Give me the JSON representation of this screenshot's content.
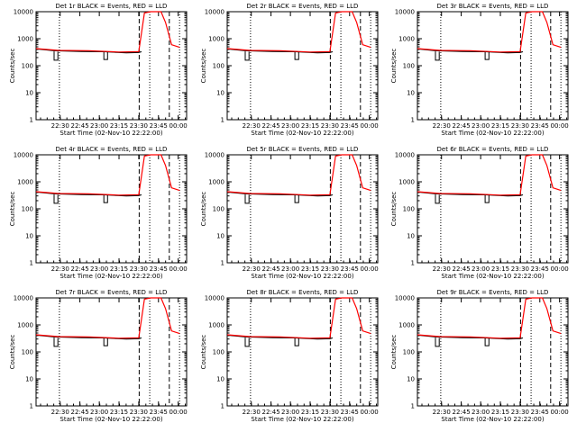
{
  "common": {
    "xlabel": "Start Time (02-Nov-10 22:22:00)",
    "ylabel": "Counts/sec",
    "x_ticks": [
      "22:30",
      "22:45",
      "23:00",
      "23:15",
      "23:30",
      "23:45",
      "00:00"
    ],
    "y_ticks": [
      "1",
      "10",
      "100",
      "1000",
      "10000"
    ],
    "colors": {
      "events": "#000000",
      "lld": "#ff0000",
      "axes": "#000000",
      "background": "#ffffff"
    }
  },
  "chart_data": [
    {
      "type": "line",
      "title": "Det 1r BLACK = Events, RED = LLD",
      "xlabel": "Start Time (02-Nov-10 22:22:00)",
      "ylabel": "Counts/sec",
      "y_scale": "log",
      "ylim": [
        1,
        10000
      ],
      "x_tick_labels": [
        "22:30",
        "22:45",
        "23:00",
        "23:15",
        "23:30",
        "23:45",
        "00:00"
      ],
      "y_tick_labels": [
        "1",
        "10",
        "100",
        "1000",
        "10000"
      ],
      "series": []
    },
    {
      "type": "line",
      "title": "Det 2r BLACK = Events, RED = LLD",
      "xlabel": "Start Time (02-Nov-10 22:22:00)",
      "ylabel": "Counts/sec",
      "y_scale": "log",
      "ylim": [
        1,
        10000
      ],
      "x_tick_labels": [
        "22:30",
        "22:45",
        "23:00",
        "23:15",
        "23:30",
        "23:45",
        "00:00"
      ],
      "y_tick_labels": [
        "1",
        "10",
        "100",
        "1000",
        "10000"
      ],
      "series": []
    },
    {
      "type": "line",
      "title": "Det 3r BLACK = Events, RED = LLD",
      "xlabel": "Start Time (02-Nov-10 22:22:00)",
      "ylabel": "Counts/sec",
      "y_scale": "log",
      "ylim": [
        1,
        10000
      ],
      "x_tick_labels": [
        "22:30",
        "22:45",
        "23:00",
        "23:15",
        "23:30",
        "23:45",
        "00:00"
      ],
      "y_tick_labels": [
        "1",
        "10",
        "100",
        "1000",
        "10000"
      ],
      "series": []
    },
    {
      "type": "line",
      "title": "Det 4r BLACK = Events, RED = LLD",
      "xlabel": "Start Time (02-Nov-10 22:22:00)",
      "ylabel": "Counts/sec",
      "y_scale": "log",
      "ylim": [
        1,
        10000
      ],
      "x_tick_labels": [
        "22:30",
        "22:45",
        "23:00",
        "23:15",
        "23:30",
        "23:45",
        "00:00"
      ],
      "y_tick_labels": [
        "1",
        "10",
        "100",
        "1000",
        "10000"
      ],
      "series": []
    },
    {
      "type": "line",
      "title": "Det 5r BLACK = Events, RED = LLD",
      "xlabel": "Start Time (02-Nov-10 22:22:00)",
      "ylabel": "Counts/sec",
      "y_scale": "log",
      "ylim": [
        1,
        10000
      ],
      "x_tick_labels": [
        "22:30",
        "22:45",
        "23:00",
        "23:15",
        "23:30",
        "23:45",
        "00:00"
      ],
      "y_tick_labels": [
        "1",
        "10",
        "100",
        "1000",
        "10000"
      ],
      "series": []
    },
    {
      "type": "line",
      "title": "Det 6r BLACK = Events, RED = LLD",
      "xlabel": "Start Time (02-Nov-10 22:22:00)",
      "ylabel": "Counts/sec",
      "y_scale": "log",
      "ylim": [
        1,
        10000
      ],
      "x_tick_labels": [
        "22:30",
        "22:45",
        "23:00",
        "23:15",
        "23:30",
        "23:45",
        "00:00"
      ],
      "y_tick_labels": [
        "1",
        "10",
        "100",
        "1000",
        "10000"
      ],
      "series": []
    },
    {
      "type": "line",
      "title": "Det 7r BLACK = Events, RED = LLD",
      "xlabel": "Start Time (02-Nov-10 22:22:00)",
      "ylabel": "Counts/sec",
      "y_scale": "log",
      "ylim": [
        1,
        10000
      ],
      "x_tick_labels": [
        "22:30",
        "22:45",
        "23:00",
        "23:15",
        "23:30",
        "23:45",
        "00:00"
      ],
      "y_tick_labels": [
        "1",
        "10",
        "100",
        "1000",
        "10000"
      ],
      "series": []
    },
    {
      "type": "line",
      "title": "Det 8r BLACK = Events, RED = LLD",
      "xlabel": "Start Time (02-Nov-10 22:22:00)",
      "ylabel": "Counts/sec",
      "y_scale": "log",
      "ylim": [
        1,
        10000
      ],
      "x_tick_labels": [
        "22:30",
        "22:45",
        "23:00",
        "23:15",
        "23:30",
        "23:45",
        "00:00"
      ],
      "y_tick_labels": [
        "1",
        "10",
        "100",
        "1000",
        "10000"
      ],
      "series": []
    },
    {
      "type": "line",
      "title": "Det 9r BLACK = Events, RED = LLD",
      "xlabel": "Start Time (02-Nov-10 22:22:00)",
      "ylabel": "Counts/sec",
      "y_scale": "log",
      "ylim": [
        1,
        10000
      ],
      "x_tick_labels": [
        "22:30",
        "22:45",
        "23:00",
        "23:15",
        "23:30",
        "23:45",
        "00:00"
      ],
      "y_tick_labels": [
        "1",
        "10",
        "100",
        "1000",
        "10000"
      ],
      "series": []
    }
  ]
}
